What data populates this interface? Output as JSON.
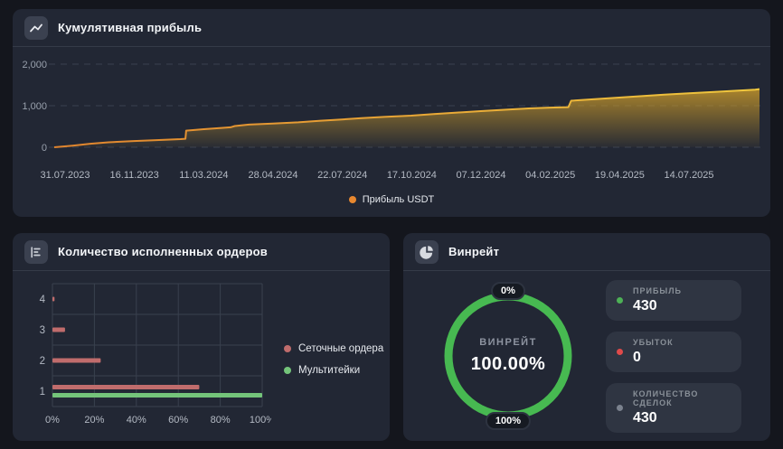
{
  "panels": {
    "profit": {
      "title": "Кумулятивная прибыль"
    },
    "orders": {
      "title": "Количество исполненных ордеров"
    },
    "winrate": {
      "title": "Винрейт",
      "stats": [
        {
          "label": "ПРИБЫЛЬ",
          "value": "430",
          "dot_color": "#4db156"
        },
        {
          "label": "УБЫТОК",
          "value": "0",
          "dot_color": "#e04a4a"
        },
        {
          "label": "КОЛИЧЕСТВО СДЕЛОК",
          "value": "430",
          "dot_color": "#7b828e"
        }
      ]
    }
  },
  "chart_data": [
    {
      "type": "area",
      "title": "Кумулятивная прибыль",
      "series_name": "Прибыль USDT",
      "legend_dot_color": "#e8882f",
      "line_color_start": "#e0842e",
      "line_color_end": "#f0c83e",
      "fill_color": "#d19f2a",
      "grid": true,
      "legend_position": "bottom",
      "y_ticks": [
        "2,000",
        "1,000",
        "0"
      ],
      "y_tick_values": [
        2000,
        1000,
        0
      ],
      "ylim": [
        0,
        2250
      ],
      "x_tick_labels": [
        "31.07.2023",
        "16.11.2023",
        "11.03.2024",
        "28.04.2024",
        "22.07.2024",
        "17.10.2024",
        "07.12.2024",
        "04.02.2025",
        "19.04.2025",
        "14.07.2025"
      ],
      "points": {
        "pos": [
          0.0,
          0.026,
          0.051,
          0.077,
          0.113,
          0.141,
          0.179,
          0.186,
          0.187,
          0.212,
          0.237,
          0.25,
          0.256,
          0.276,
          0.31,
          0.346,
          0.378,
          0.408,
          0.436,
          0.468,
          0.506,
          0.538,
          0.571,
          0.605,
          0.641,
          0.673,
          0.703,
          0.729,
          0.733,
          0.769,
          0.801,
          0.833,
          0.865,
          0.9,
          0.936,
          0.968,
          0.994,
          1.0
        ],
        "value": [
          0,
          40,
          85,
          120,
          150,
          170,
          195,
          205,
          400,
          435,
          465,
          480,
          510,
          545,
          570,
          600,
          640,
          670,
          700,
          730,
          760,
          800,
          835,
          870,
          905,
          935,
          955,
          965,
          1120,
          1160,
          1195,
          1230,
          1265,
          1300,
          1330,
          1360,
          1385,
          1400
        ]
      }
    },
    {
      "type": "bar",
      "title": "Количество исполненных ордеров",
      "orientation": "horizontal",
      "categories": [
        "4",
        "3",
        "2",
        "1"
      ],
      "series": [
        {
          "name": "Сеточные ордера",
          "color": "#c06c6c",
          "values": [
            1,
            6,
            23,
            70
          ]
        },
        {
          "name": "Мультитейки",
          "color": "#74c47a",
          "values": [
            0,
            0,
            0,
            100
          ]
        }
      ],
      "x_ticks": [
        "0%",
        "20%",
        "40%",
        "60%",
        "80%",
        "100%"
      ],
      "xlim": [
        0,
        100
      ],
      "grid": true,
      "legend_position": "right"
    },
    {
      "type": "donut",
      "title": "Винрейт",
      "center_label": "ВИНРЕЙТ",
      "center_value": "100.00%",
      "value_percent": 100,
      "ring_color": "#47b951",
      "min_badge": "0%",
      "max_badge": "100%"
    }
  ]
}
